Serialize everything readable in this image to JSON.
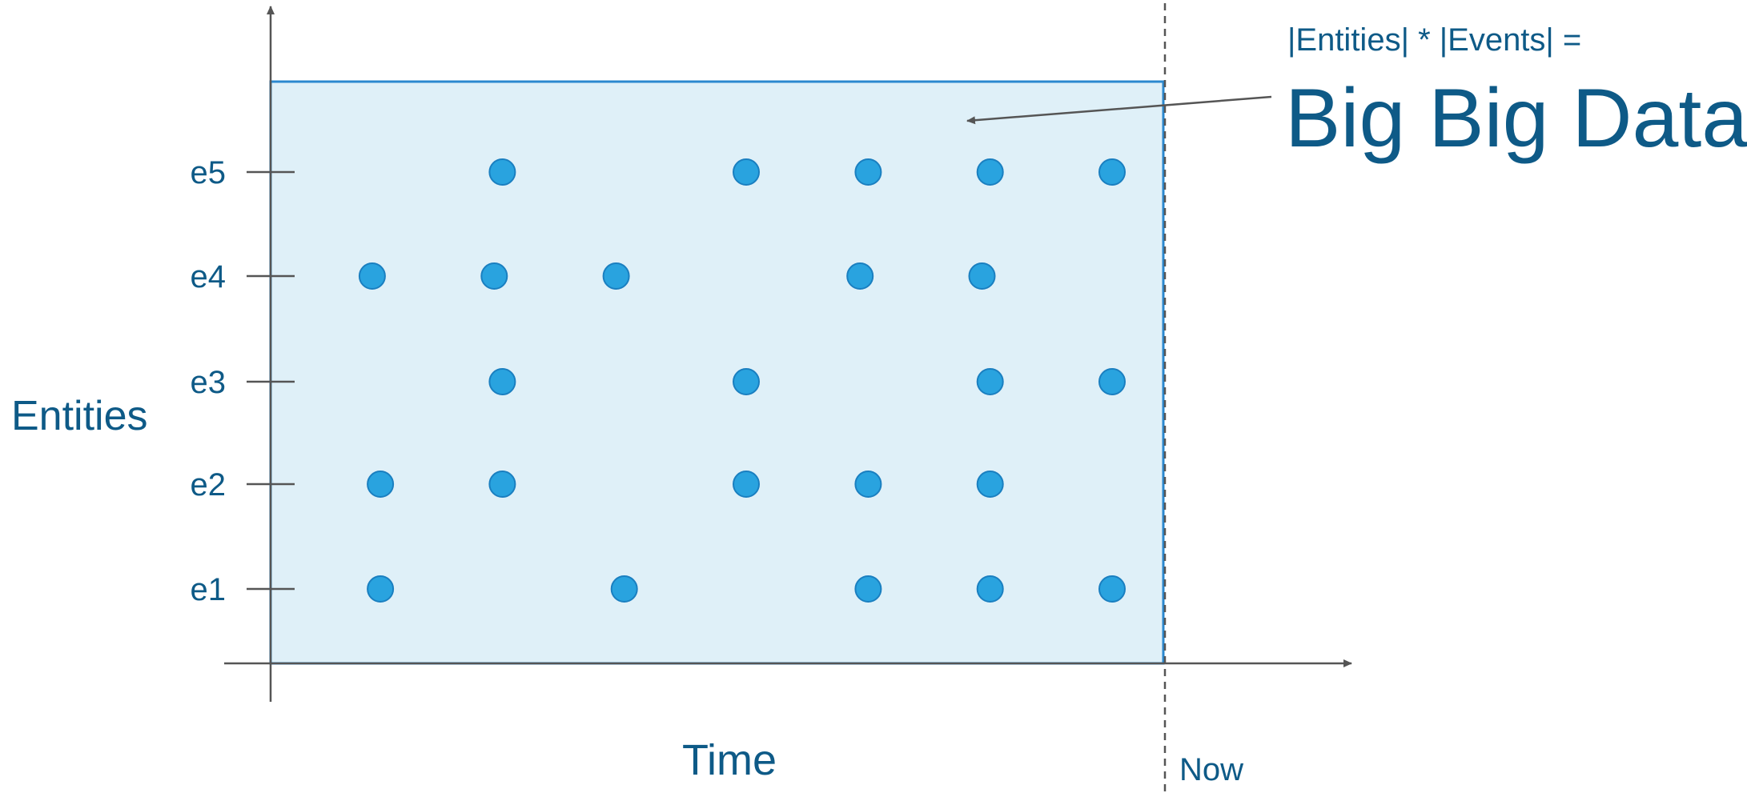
{
  "labels": {
    "y_axis": "Entities",
    "x_axis": "Time",
    "now": "Now",
    "formula": "|Entities| * |Events| =",
    "headline": "Big Big Data"
  },
  "entities": [
    "e1",
    "e2",
    "e3",
    "e4",
    "e5"
  ],
  "colors": {
    "text": "#0e5a87",
    "region_fill": "#dff0f8",
    "region_border": "#2b88cf",
    "dot_fill": "#29a3df",
    "dot_stroke": "#1a7fc0",
    "axis": "#555555",
    "now_line": "#555555"
  },
  "chart_data": {
    "type": "scatter",
    "x_range": [
      0,
      11
    ],
    "now_x": 11,
    "events": [
      {
        "entity": "e1",
        "t": [
          1.35,
          4.35,
          7.35,
          8.85,
          10.35
        ]
      },
      {
        "entity": "e2",
        "t": [
          1.35,
          2.85,
          5.85,
          7.35,
          8.85
        ]
      },
      {
        "entity": "e3",
        "t": [
          2.85,
          5.85,
          8.85,
          10.35
        ]
      },
      {
        "entity": "e4",
        "t": [
          1.25,
          2.75,
          4.25,
          7.25,
          8.75
        ]
      },
      {
        "entity": "e5",
        "t": [
          2.85,
          5.85,
          7.35,
          8.85,
          10.35
        ]
      }
    ]
  }
}
